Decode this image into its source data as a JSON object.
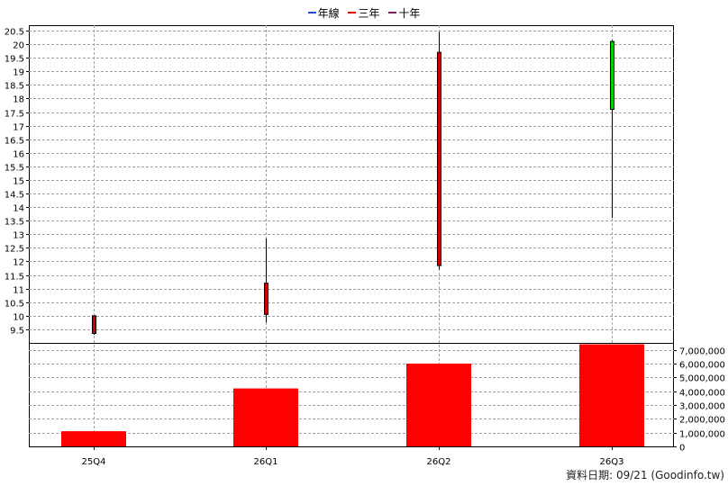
{
  "legend": [
    {
      "label": "年線",
      "color": "#1f4fd1"
    },
    {
      "label": "三年",
      "color": "#e00000"
    },
    {
      "label": "十年",
      "color": "#8a1b6b"
    }
  ],
  "source": "資料日期: 09/21  (Goodinfo.tw)",
  "chart_data": [
    {
      "type": "candlestick",
      "categories": [
        "25Q4",
        "26Q1",
        "26Q2",
        "26Q3"
      ],
      "ylim": [
        9.0,
        20.7
      ],
      "yticks": [
        9.5,
        10,
        10.5,
        11,
        11.5,
        12,
        12.5,
        13,
        13.5,
        14,
        14.5,
        15,
        15.5,
        16,
        16.5,
        17,
        17.5,
        18,
        18.5,
        19,
        19.5,
        20,
        20.5
      ],
      "ytick_labels": [
        "9.5",
        "10",
        "10.5",
        "11",
        "11.5",
        "12",
        "12.5",
        "13",
        "13.5",
        "14",
        "14.5",
        "15",
        "15.5",
        "16",
        "16.5",
        "17",
        "17.5",
        "18",
        "18.5",
        "19",
        "19.5",
        "20",
        "20.5"
      ],
      "candles": [
        {
          "category": "25Q4",
          "open": 10.0,
          "high": 10.0,
          "low": 9.3,
          "close": 9.35,
          "color": "#cc0000"
        },
        {
          "category": "26Q1",
          "open": 11.2,
          "high": 12.85,
          "low": 9.75,
          "close": 10.05,
          "color": "#cc0000"
        },
        {
          "category": "26Q2",
          "open": 19.7,
          "high": 20.45,
          "low": 11.7,
          "close": 11.85,
          "color": "#cc0000"
        },
        {
          "category": "26Q3",
          "open": 17.6,
          "high": 20.15,
          "low": 13.6,
          "close": 20.1,
          "color": "#00cc00"
        }
      ],
      "grid": true
    },
    {
      "type": "bar",
      "categories": [
        "25Q4",
        "26Q1",
        "26Q2",
        "26Q3"
      ],
      "values": [
        1100000,
        4200000,
        6000000,
        7400000
      ],
      "ylim": [
        0,
        7500000
      ],
      "yticks": [
        0,
        1000000,
        2000000,
        3000000,
        4000000,
        5000000,
        6000000,
        7000000
      ],
      "ytick_labels": [
        "0",
        "1,000,000",
        "2,000,000",
        "3,000,000",
        "4,000,000",
        "5,000,000",
        "6,000,000",
        "7,000,000"
      ],
      "color": "#ff0000",
      "grid": true
    }
  ]
}
